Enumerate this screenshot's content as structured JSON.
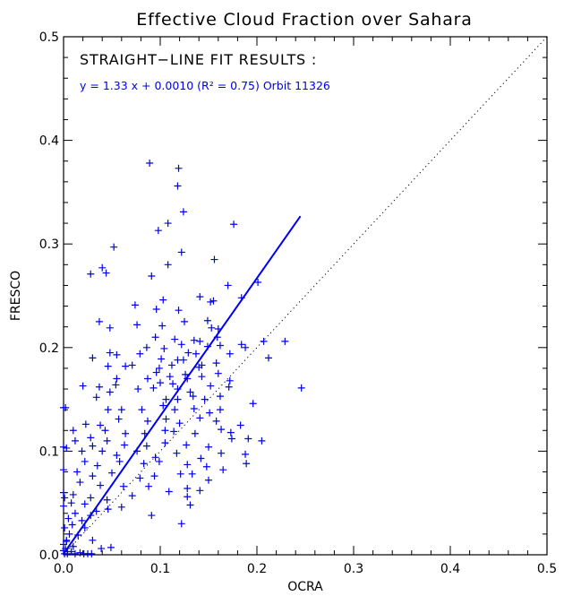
{
  "chart_data": {
    "type": "scatter",
    "title": "Effective Cloud Fraction over Sahara",
    "xlabel": "OCRA",
    "ylabel": "FRESCO",
    "xlim": [
      0,
      0.5
    ],
    "ylim": [
      0,
      0.5
    ],
    "xticks": [
      "0.0",
      "0.1",
      "0.2",
      "0.3",
      "0.4",
      "0.5"
    ],
    "yticks": [
      "0.0",
      "0.1",
      "0.2",
      "0.3",
      "0.4",
      "0.5"
    ],
    "grid": false,
    "annotations": {
      "heading": "STRAIGHT−LINE FIT RESULTS :",
      "fit_text": "y =  1.33 x + 0.0010 (R² = 0.75) Orbit 11326"
    },
    "fit": {
      "slope": 1.33,
      "intercept": 0.001,
      "x_end": 0.245,
      "color": "#0000ee"
    },
    "reference_line": {
      "style": "dotted",
      "from": [
        0,
        0
      ],
      "to": [
        0.5,
        0.5
      ],
      "color": "#000000"
    },
    "marker": {
      "shape": "plus",
      "color": "#0000ee"
    },
    "series": [
      {
        "points": [
          [
            0.089,
            0.378
          ],
          [
            0.119,
            0.373
          ],
          [
            0.118,
            0.356
          ],
          [
            0.124,
            0.331
          ],
          [
            0.108,
            0.32
          ],
          [
            0.098,
            0.313
          ],
          [
            0.176,
            0.319
          ],
          [
            0.052,
            0.297
          ],
          [
            0.122,
            0.292
          ],
          [
            0.108,
            0.28
          ],
          [
            0.04,
            0.277
          ],
          [
            0.044,
            0.272
          ],
          [
            0.028,
            0.271
          ],
          [
            0.091,
            0.269
          ],
          [
            0.156,
            0.285
          ],
          [
            0.074,
            0.241
          ],
          [
            0.096,
            0.237
          ],
          [
            0.119,
            0.236
          ],
          [
            0.103,
            0.246
          ],
          [
            0.141,
            0.249
          ],
          [
            0.155,
            0.245
          ],
          [
            0.152,
            0.244
          ],
          [
            0.17,
            0.26
          ],
          [
            0.184,
            0.248
          ],
          [
            0.201,
            0.263
          ],
          [
            0.076,
            0.222
          ],
          [
            0.037,
            0.225
          ],
          [
            0.048,
            0.219
          ],
          [
            0.102,
            0.221
          ],
          [
            0.125,
            0.225
          ],
          [
            0.149,
            0.226
          ],
          [
            0.153,
            0.219
          ],
          [
            0.16,
            0.218
          ],
          [
            0.095,
            0.21
          ],
          [
            0.115,
            0.208
          ],
          [
            0.135,
            0.207
          ],
          [
            0.159,
            0.21
          ],
          [
            0.162,
            0.202
          ],
          [
            0.184,
            0.203
          ],
          [
            0.086,
            0.2
          ],
          [
            0.104,
            0.199
          ],
          [
            0.122,
            0.203
          ],
          [
            0.129,
            0.195
          ],
          [
            0.141,
            0.206
          ],
          [
            0.149,
            0.201
          ],
          [
            0.172,
            0.194
          ],
          [
            0.188,
            0.2
          ],
          [
            0.048,
            0.195
          ],
          [
            0.055,
            0.193
          ],
          [
            0.079,
            0.194
          ],
          [
            0.101,
            0.189
          ],
          [
            0.118,
            0.188
          ],
          [
            0.137,
            0.194
          ],
          [
            0.03,
            0.19
          ],
          [
            0.099,
            0.18
          ],
          [
            0.112,
            0.183
          ],
          [
            0.124,
            0.188
          ],
          [
            0.143,
            0.183
          ],
          [
            0.158,
            0.185
          ],
          [
            0.046,
            0.182
          ],
          [
            0.064,
            0.182
          ],
          [
            0.071,
            0.183
          ],
          [
            0.096,
            0.176
          ],
          [
            0.11,
            0.172
          ],
          [
            0.126,
            0.174
          ],
          [
            0.14,
            0.181
          ],
          [
            0.16,
            0.175
          ],
          [
            0.055,
            0.17
          ],
          [
            0.087,
            0.17
          ],
          [
            0.1,
            0.166
          ],
          [
            0.113,
            0.165
          ],
          [
            0.128,
            0.17
          ],
          [
            0.143,
            0.172
          ],
          [
            0.172,
            0.168
          ],
          [
            0.02,
            0.163
          ],
          [
            0.037,
            0.162
          ],
          [
            0.054,
            0.164
          ],
          [
            0.077,
            0.16
          ],
          [
            0.093,
            0.161
          ],
          [
            0.118,
            0.16
          ],
          [
            0.131,
            0.157
          ],
          [
            0.152,
            0.163
          ],
          [
            0.171,
            0.162
          ],
          [
            0.207,
            0.206
          ],
          [
            0.212,
            0.19
          ],
          [
            0.229,
            0.206
          ],
          [
            0.246,
            0.161
          ],
          [
            0.034,
            0.152
          ],
          [
            0.048,
            0.157
          ],
          [
            0.106,
            0.15
          ],
          [
            0.118,
            0.15
          ],
          [
            0.134,
            0.153
          ],
          [
            0.146,
            0.15
          ],
          [
            0.162,
            0.153
          ],
          [
            0.196,
            0.146
          ],
          [
            0.046,
            0.14
          ],
          [
            0.06,
            0.14
          ],
          [
            0.081,
            0.14
          ],
          [
            0.103,
            0.144
          ],
          [
            0.115,
            0.14
          ],
          [
            0.135,
            0.141
          ],
          [
            0.151,
            0.137
          ],
          [
            0.162,
            0.14
          ],
          [
            0.023,
            0.126
          ],
          [
            0.038,
            0.125
          ],
          [
            0.057,
            0.131
          ],
          [
            0.087,
            0.129
          ],
          [
            0.106,
            0.131
          ],
          [
            0.12,
            0.127
          ],
          [
            0.141,
            0.132
          ],
          [
            0.158,
            0.129
          ],
          [
            0.183,
            0.125
          ],
          [
            0.01,
            0.12
          ],
          [
            0.028,
            0.113
          ],
          [
            0.043,
            0.12
          ],
          [
            0.064,
            0.117
          ],
          [
            0.084,
            0.117
          ],
          [
            0.105,
            0.12
          ],
          [
            0.114,
            0.119
          ],
          [
            0.136,
            0.117
          ],
          [
            0.163,
            0.121
          ],
          [
            0.173,
            0.118
          ],
          [
            0.205,
            0.11
          ],
          [
            0.012,
            0.11
          ],
          [
            0.03,
            0.105
          ],
          [
            0.045,
            0.11
          ],
          [
            0.063,
            0.106
          ],
          [
            0.086,
            0.105
          ],
          [
            0.105,
            0.108
          ],
          [
            0.127,
            0.106
          ],
          [
            0.15,
            0.104
          ],
          [
            0.174,
            0.112
          ],
          [
            0.191,
            0.112
          ],
          [
            0.003,
            0.103
          ],
          [
            0.019,
            0.1
          ],
          [
            0.04,
            0.1
          ],
          [
            0.055,
            0.096
          ],
          [
            0.076,
            0.1
          ],
          [
            0.095,
            0.094
          ],
          [
            0.117,
            0.098
          ],
          [
            0.142,
            0.093
          ],
          [
            0.163,
            0.098
          ],
          [
            0.188,
            0.097
          ],
          [
            0.022,
            0.09
          ],
          [
            0.035,
            0.086
          ],
          [
            0.058,
            0.09
          ],
          [
            0.083,
            0.088
          ],
          [
            0.099,
            0.09
          ],
          [
            0.128,
            0.087
          ],
          [
            0.148,
            0.085
          ],
          [
            0.165,
            0.082
          ],
          [
            0.189,
            0.088
          ],
          [
            0.014,
            0.08
          ],
          [
            0.03,
            0.076
          ],
          [
            0.05,
            0.079
          ],
          [
            0.079,
            0.074
          ],
          [
            0.094,
            0.076
          ],
          [
            0.121,
            0.078
          ],
          [
            0.133,
            0.078
          ],
          [
            0.15,
            0.072
          ],
          [
            0.017,
            0.07
          ],
          [
            0.038,
            0.067
          ],
          [
            0.062,
            0.066
          ],
          [
            0.088,
            0.066
          ],
          [
            0.109,
            0.061
          ],
          [
            0.128,
            0.064
          ],
          [
            0.141,
            0.062
          ],
          [
            0.01,
            0.058
          ],
          [
            0.028,
            0.055
          ],
          [
            0.045,
            0.053
          ],
          [
            0.071,
            0.057
          ],
          [
            0.128,
            0.056
          ],
          [
            0.131,
            0.048
          ],
          [
            0.001,
            0.055
          ],
          [
            0.008,
            0.05
          ],
          [
            0.022,
            0.049
          ],
          [
            0.046,
            0.044
          ],
          [
            0.06,
            0.046
          ],
          [
            0.034,
            0.042
          ],
          [
            0.012,
            0.04
          ],
          [
            0.028,
            0.038
          ],
          [
            0.005,
            0.035
          ],
          [
            0.019,
            0.033
          ],
          [
            0.091,
            0.038
          ],
          [
            0.122,
            0.03
          ],
          [
            0.009,
            0.029
          ],
          [
            0.022,
            0.026
          ],
          [
            0.006,
            0.02
          ],
          [
            0.015,
            0.019
          ],
          [
            0.03,
            0.014
          ],
          [
            0.003,
            0.013
          ],
          [
            0.01,
            0.008
          ],
          [
            0.039,
            0.006
          ],
          [
            0.049,
            0.007
          ],
          [
            0.002,
            0.006
          ],
          [
            0.004,
            0.003
          ],
          [
            0.008,
            0.003
          ],
          [
            0.012,
            0.001
          ],
          [
            0.017,
            0.002
          ],
          [
            0.021,
            0.001
          ],
          [
            0.025,
            0.001
          ],
          [
            0.029,
            0.001
          ],
          [
            0.001,
            0.001
          ],
          [
            0.004,
            0.001
          ],
          [
            0.0,
            0.004
          ],
          [
            0.0,
            0.01
          ],
          [
            0.003,
            0.014
          ],
          [
            0.0,
            0.142
          ],
          [
            0.0,
            0.104
          ],
          [
            0.0,
            0.082
          ],
          [
            0.0,
            0.06
          ],
          [
            0.0,
            0.047
          ],
          [
            0.001,
            0.026
          ],
          [
            0.002,
            0.142
          ]
        ]
      }
    ]
  }
}
